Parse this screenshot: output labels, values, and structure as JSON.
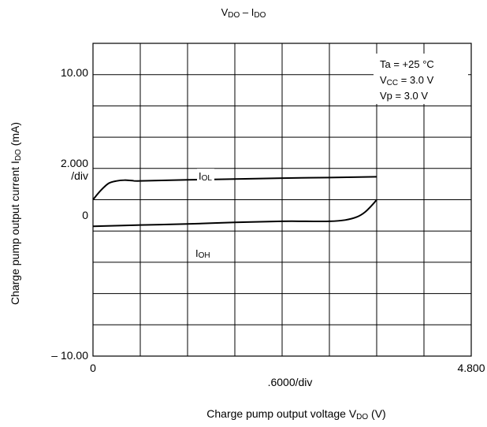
{
  "chart_data": {
    "type": "line",
    "title": {
      "main": "V",
      "main_sub": "DO",
      "sep": " – I",
      "sep_sub": "DO"
    },
    "xlabel": {
      "main": "Charge pump output voltage V",
      "sub": "DO",
      "unit": " (V)"
    },
    "ylabel": {
      "main": "Charge pump output current I",
      "sub": "DO",
      "unit": " (mA)"
    },
    "xlim": [
      0,
      4.8
    ],
    "ylim": [
      -10,
      10
    ],
    "grid": true,
    "x_divisions": 8,
    "y_divisions": 10,
    "tick_labels": {
      "x_min": "0",
      "x_max": "4.800",
      "x_div": ".6000/div",
      "y_max": "10.00",
      "y_div_value": "2.000",
      "y_div_unit": "/div",
      "y_zero": "0",
      "y_min": "– 10.00"
    },
    "conditions": [
      {
        "label": "Ta = +25 °C",
        "sub": ""
      },
      {
        "label": "V",
        "sub": "CC",
        "rest": " = 3.0 V"
      },
      {
        "label": "Vp =  3.0 V",
        "sub": ""
      }
    ],
    "series": [
      {
        "name": "I",
        "name_sub": "OL",
        "x": [
          0,
          0.1,
          0.2,
          0.3,
          0.4,
          0.5,
          0.6,
          1.2,
          1.8,
          2.4,
          3.0,
          3.6
        ],
        "y": [
          0,
          0.6,
          1.05,
          1.2,
          1.25,
          1.22,
          1.2,
          1.27,
          1.32,
          1.38,
          1.42,
          1.47
        ]
      },
      {
        "name": "I",
        "name_sub": "OH",
        "x": [
          0,
          0.6,
          1.2,
          1.8,
          2.4,
          2.7,
          3.0,
          3.2,
          3.35,
          3.45,
          3.55,
          3.6
        ],
        "y": [
          -1.7,
          -1.62,
          -1.55,
          -1.45,
          -1.38,
          -1.38,
          -1.38,
          -1.3,
          -1.1,
          -0.8,
          -0.3,
          0
        ]
      }
    ],
    "colors": {
      "line": "#000000",
      "grid": "#000000",
      "background": "#ffffff"
    }
  }
}
